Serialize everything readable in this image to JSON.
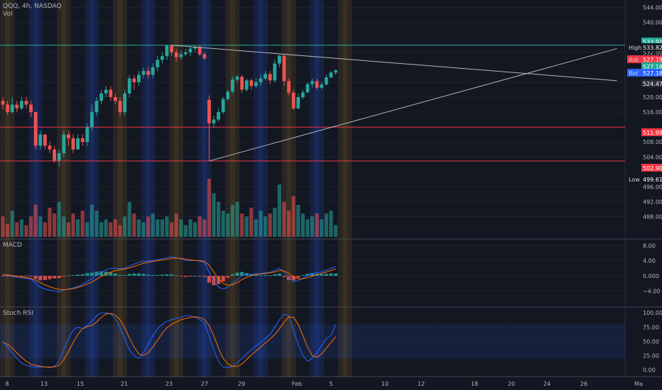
{
  "header": {
    "symbol": "QQQ, 4h, NASDAQ",
    "vol_label": "Vol"
  },
  "panes": {
    "macd_label": "MACD",
    "stoch_label": "Stoch RSI"
  },
  "colors": {
    "bg": "#131722",
    "up": "#26a69a",
    "down": "#ef5350",
    "grid": "#2a2e39",
    "text": "#b2b5be",
    "macd_line": "#2962ff",
    "signal_line": "#ff6d00",
    "hline": "#f23645",
    "high_line": "#22ab94",
    "trend": "#b2b5be"
  },
  "chart_data": [
    {
      "type": "candlestick",
      "title": "",
      "y_ticks": [
        544,
        540,
        532,
        524,
        520,
        516,
        508,
        504,
        496,
        492,
        488
      ],
      "x_ticks": [
        "8",
        "13",
        "15",
        "21",
        "23",
        "27",
        "29",
        "Feb",
        "5",
        "10",
        "12",
        "18",
        "20",
        "24",
        "26",
        "Ma"
      ],
      "price_tags": [
        {
          "label": "",
          "value": "533.91",
          "color": "#22ab94"
        },
        {
          "label": "High",
          "value": "533.82",
          "color": "#131722"
        },
        {
          "label": "Ask",
          "value": "527.19",
          "color": "#f23645"
        },
        {
          "label": "",
          "value": "527.18",
          "color": "#22ab94"
        },
        {
          "label": "Bid",
          "value": "527.18",
          "color": "#2962ff"
        },
        {
          "label": "",
          "value": "524.47",
          "color": "#2a2e39"
        },
        {
          "label": "",
          "value": "511.99",
          "color": "#f23645"
        },
        {
          "label": "",
          "value": "502.90",
          "color": "#f23645"
        },
        {
          "label": "Low",
          "value": "499.61",
          "color": "#131722"
        }
      ],
      "hlines": [
        533.91,
        511.99,
        502.9
      ],
      "trendlines": [
        {
          "from": [
            36,
            533.9
          ],
          "to": [
            131,
            524.4
          ]
        },
        {
          "from": [
            44,
            502.9
          ],
          "to": [
            131,
            533.0
          ]
        }
      ],
      "candles": [
        [
          519,
          518,
          520,
          516.6
        ],
        [
          518,
          516,
          519,
          515.2
        ],
        [
          516,
          518,
          520,
          515.6
        ],
        [
          518,
          517,
          519,
          516
        ],
        [
          517,
          519,
          520,
          516.5
        ],
        [
          519,
          518,
          520,
          517
        ],
        [
          518,
          516,
          519,
          514.6
        ],
        [
          516,
          507,
          516,
          506
        ],
        [
          507,
          510,
          511,
          506
        ],
        [
          510,
          507,
          510,
          506
        ],
        [
          507,
          506,
          508,
          505
        ],
        [
          506,
          503,
          507,
          502.4
        ],
        [
          503,
          505,
          506,
          501.4
        ],
        [
          505,
          510,
          511,
          504
        ],
        [
          510,
          509,
          511,
          507
        ],
        [
          509,
          506,
          510,
          505
        ],
        [
          506,
          509,
          510,
          506
        ],
        [
          509,
          508,
          510,
          507
        ],
        [
          508,
          512,
          513,
          507
        ],
        [
          512,
          516,
          518,
          511
        ],
        [
          516,
          519,
          520,
          515
        ],
        [
          519,
          521,
          522,
          518
        ],
        [
          521,
          522,
          523,
          520
        ],
        [
          522,
          520,
          523,
          519
        ],
        [
          520,
          519,
          521,
          518
        ],
        [
          519,
          516,
          520,
          515
        ],
        [
          516,
          521,
          522,
          515
        ],
        [
          521,
          525,
          526,
          520
        ],
        [
          525,
          524,
          526,
          522
        ],
        [
          524,
          526,
          527,
          523
        ],
        [
          526,
          527,
          528,
          525
        ],
        [
          527,
          526,
          528,
          525
        ],
        [
          526,
          528,
          529,
          525
        ],
        [
          528,
          530,
          531,
          527
        ],
        [
          530,
          531,
          532,
          529
        ],
        [
          531,
          533.8,
          534,
          530
        ],
        [
          533.8,
          532,
          534,
          531
        ],
        [
          532,
          530.7,
          533,
          529.5
        ],
        [
          530.7,
          531.5,
          532.5,
          530
        ],
        [
          531.5,
          532,
          533,
          531
        ],
        [
          532,
          533,
          533.8,
          531
        ],
        [
          533,
          533.5,
          533.8,
          532
        ],
        [
          533.5,
          531.5,
          534,
          531
        ],
        [
          531.5,
          530.4,
          532,
          530
        ],
        [
          519.3,
          513,
          520.5,
          503
        ],
        [
          513,
          514,
          515,
          511.8
        ],
        [
          514,
          516,
          517,
          513.5
        ],
        [
          516,
          519.5,
          520,
          515.5
        ],
        [
          519.5,
          521.5,
          522,
          519
        ],
        [
          521.5,
          524.7,
          525.5,
          521
        ],
        [
          524.7,
          525.5,
          526,
          523.8
        ],
        [
          525.5,
          522,
          526,
          521
        ],
        [
          522,
          524.5,
          525,
          521.5
        ],
        [
          524.5,
          523,
          525,
          522
        ],
        [
          523,
          524,
          525,
          522.5
        ],
        [
          524,
          525,
          526,
          523
        ],
        [
          525,
          526.2,
          527,
          524.5
        ],
        [
          526.2,
          524.5,
          527,
          523.5
        ],
        [
          524.5,
          529,
          530,
          524
        ],
        [
          529,
          531.1,
          531.3,
          528
        ],
        [
          531.1,
          524.3,
          531.3,
          523
        ],
        [
          524.3,
          521.2,
          525,
          520.5
        ],
        [
          521.2,
          517,
          522,
          516.5
        ],
        [
          517,
          520,
          521,
          516.8
        ],
        [
          520,
          521.3,
          522,
          519.5
        ],
        [
          521.3,
          523.5,
          524,
          521
        ],
        [
          523.5,
          524.3,
          525,
          522.5
        ],
        [
          524.3,
          522.5,
          525,
          522
        ],
        [
          522.5,
          523.4,
          524,
          522
        ],
        [
          523.4,
          525.3,
          526,
          523
        ],
        [
          525.3,
          526.6,
          527,
          525
        ],
        [
          526.6,
          527.18,
          527.4,
          526
        ]
      ]
    },
    {
      "type": "bar",
      "title": "",
      "series": [
        {
          "values": [
            0.35,
            0.22,
            0.45,
            0.25,
            0.3,
            0.2,
            0.35,
            0.55,
            0.35,
            0.25,
            0.5,
            0.4,
            0.6,
            0.35,
            0.25,
            0.4,
            0.3,
            0.45,
            0.25,
            0.55,
            0.45,
            0.25,
            0.3,
            0.25,
            0.3,
            0.2,
            0.35,
            0.6,
            0.4,
            0.3,
            0.25,
            0.35,
            0.4,
            0.3,
            0.3,
            0.35,
            0.25,
            0.4,
            0.3,
            0.2,
            0.3,
            0.25,
            0.35,
            0.3,
            1.0,
            0.75,
            0.6,
            0.45,
            0.4,
            0.55,
            0.6,
            0.4,
            0.35,
            0.5,
            0.3,
            0.45,
            0.35,
            0.4,
            0.5,
            0.9,
            0.6,
            0.45,
            0.7,
            0.55,
            0.4,
            0.3,
            0.35,
            0.4,
            0.3,
            0.4,
            0.45,
            0.2
          ]
        }
      ]
    },
    {
      "type": "line",
      "title": "",
      "y_ticks": [
        "8.00",
        "4.00",
        "0.000",
        "−4.00"
      ],
      "series": [
        {
          "values": [
            0.2,
            0.1,
            -0.2,
            -0.4,
            -0.6,
            -0.7,
            -0.9,
            -2.0,
            -3.0,
            -3.5,
            -3.8,
            -4.0,
            -4.2,
            -3.8,
            -3.5,
            -3.2,
            -2.8,
            -2.3,
            -1.5,
            -0.8,
            0.2,
            1.0,
            1.6,
            1.9,
            2.0,
            1.8,
            2.0,
            2.6,
            3.1,
            3.5,
            3.8,
            3.9,
            4.0,
            4.2,
            4.5,
            4.8,
            5.0,
            4.8,
            4.4,
            4.1,
            4.0,
            4.1,
            3.9,
            3.5,
            1.0,
            -1.5,
            -3.0,
            -3.5,
            -3.0,
            -2.0,
            -1.0,
            0.0,
            0.3,
            0.4,
            0.5,
            0.6,
            0.8,
            0.9,
            1.4,
            2.0,
            1.0,
            -0.5,
            -1.5,
            -1.3,
            -0.6,
            0.0,
            0.6,
            0.8,
            1.0,
            1.5,
            2.0,
            2.4
          ]
        },
        {
          "values": [
            0.3,
            0.25,
            0.1,
            -0.1,
            -0.3,
            -0.5,
            -0.7,
            -1.2,
            -1.8,
            -2.4,
            -2.9,
            -3.3,
            -3.6,
            -3.7,
            -3.6,
            -3.4,
            -3.1,
            -2.7,
            -2.2,
            -1.6,
            -0.9,
            -0.2,
            0.5,
            1.0,
            1.4,
            1.6,
            1.8,
            2.1,
            2.5,
            2.9,
            3.3,
            3.6,
            3.8,
            4.0,
            4.2,
            4.4,
            4.6,
            4.7,
            4.6,
            4.4,
            4.2,
            4.1,
            4.0,
            3.8,
            2.8,
            1.0,
            -0.8,
            -2.0,
            -2.5,
            -2.4,
            -1.8,
            -1.0,
            -0.4,
            0.0,
            0.3,
            0.5,
            0.6,
            0.8,
            1.0,
            1.4,
            1.3,
            0.6,
            -0.3,
            -0.8,
            -0.8,
            -0.5,
            -0.1,
            0.3,
            0.6,
            1.0,
            1.4,
            1.8
          ]
        }
      ],
      "histogram": [
        -0.1,
        -0.15,
        -0.3,
        -0.3,
        -0.3,
        -0.2,
        -0.2,
        -0.8,
        -1.2,
        -1.1,
        -0.9,
        -0.7,
        -0.6,
        -0.1,
        0.1,
        0.2,
        0.3,
        0.4,
        0.7,
        0.8,
        1.1,
        1.2,
        1.1,
        0.9,
        0.6,
        0.2,
        0.2,
        0.5,
        0.6,
        0.6,
        0.5,
        0.3,
        0.2,
        0.2,
        0.3,
        0.4,
        0.4,
        0.1,
        -0.2,
        -0.3,
        -0.2,
        0.0,
        -0.1,
        -0.3,
        -1.8,
        -2.5,
        -2.2,
        -1.5,
        -0.5,
        0.4,
        0.8,
        1.0,
        0.7,
        0.4,
        0.2,
        0.1,
        0.2,
        0.1,
        0.4,
        0.6,
        -0.3,
        -1.1,
        -1.2,
        -0.5,
        0.2,
        0.5,
        0.7,
        0.5,
        0.4,
        0.5,
        0.6,
        0.6
      ]
    },
    {
      "type": "line",
      "title": "",
      "y_ticks": [
        "100.00",
        "75.00",
        "50.00",
        "25.00",
        "0.00"
      ],
      "series": [
        {
          "values": [
            50,
            40,
            30,
            20,
            12,
            8,
            6,
            5,
            5,
            5,
            4,
            6,
            15,
            35,
            55,
            70,
            75,
            72,
            78,
            85,
            95,
            100,
            100,
            98,
            90,
            75,
            55,
            35,
            25,
            20,
            30,
            45,
            60,
            72,
            80,
            85,
            88,
            90,
            92,
            95,
            95,
            92,
            88,
            82,
            60,
            35,
            15,
            5,
            4,
            6,
            12,
            20,
            28,
            35,
            42,
            48,
            55,
            62,
            75,
            88,
            98,
            95,
            70,
            45,
            25,
            15,
            20,
            30,
            42,
            55,
            60,
            80
          ]
        },
        {
          "values": [
            48,
            45,
            38,
            30,
            22,
            15,
            10,
            8,
            6,
            5,
            5,
            5,
            8,
            18,
            32,
            48,
            62,
            72,
            76,
            78,
            84,
            92,
            98,
            99,
            96,
            88,
            74,
            56,
            40,
            28,
            25,
            30,
            40,
            52,
            64,
            74,
            80,
            84,
            88,
            90,
            92,
            93,
            92,
            88,
            78,
            60,
            38,
            20,
            10,
            6,
            6,
            10,
            18,
            26,
            33,
            40,
            47,
            54,
            62,
            72,
            84,
            93,
            92,
            80,
            60,
            40,
            25,
            22,
            28,
            38,
            48,
            58
          ]
        }
      ]
    }
  ]
}
